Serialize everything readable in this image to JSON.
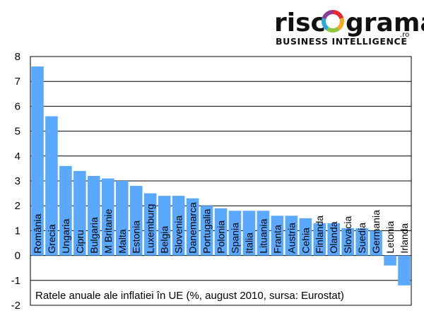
{
  "logo": {
    "left": "risc",
    "right": "grama",
    "suffix": ".ro",
    "tagline": "BUSINESS INTELLIGENCE",
    "ring_colors": [
      "#e8262b",
      "#f7a81b",
      "#8dc63f",
      "#2aa7df",
      "#8b3f98"
    ]
  },
  "chart_data": {
    "type": "bar",
    "title": "",
    "caption": "Ratele anuale ale inflatiei în UE (%, august 2010, sursa: Eurostat)",
    "xlabel": "",
    "ylabel": "",
    "ylim": [
      -2,
      8
    ],
    "yticks": [
      "8",
      "7",
      "6",
      "5",
      "4",
      "3",
      "2",
      "1",
      "0",
      "-1",
      "-2"
    ],
    "grid": true,
    "bar_color": "#5aa9ff",
    "categories": [
      "România",
      "Grecia",
      "Ungaria",
      "Cipru",
      "Bulgaria",
      "M Britanie",
      "Malta",
      "Estonia",
      "Luxemburg",
      "Belgia",
      "Slovenia",
      "Danemarca",
      "Portugalia",
      "Polonia",
      "Spania",
      "Italia",
      "Lituania",
      "Franta",
      "Austria",
      "Cehia",
      "Finlanda",
      "Olanda",
      "Slovacia",
      "Suedia",
      "Germania",
      "Letonia",
      "Irlanda"
    ],
    "values": [
      7.6,
      5.6,
      3.6,
      3.4,
      3.2,
      3.1,
      3.0,
      2.8,
      2.5,
      2.4,
      2.4,
      2.3,
      2.0,
      1.9,
      1.8,
      1.8,
      1.8,
      1.6,
      1.6,
      1.5,
      1.3,
      1.3,
      1.1,
      1.1,
      1.0,
      -0.4,
      -1.2
    ]
  }
}
